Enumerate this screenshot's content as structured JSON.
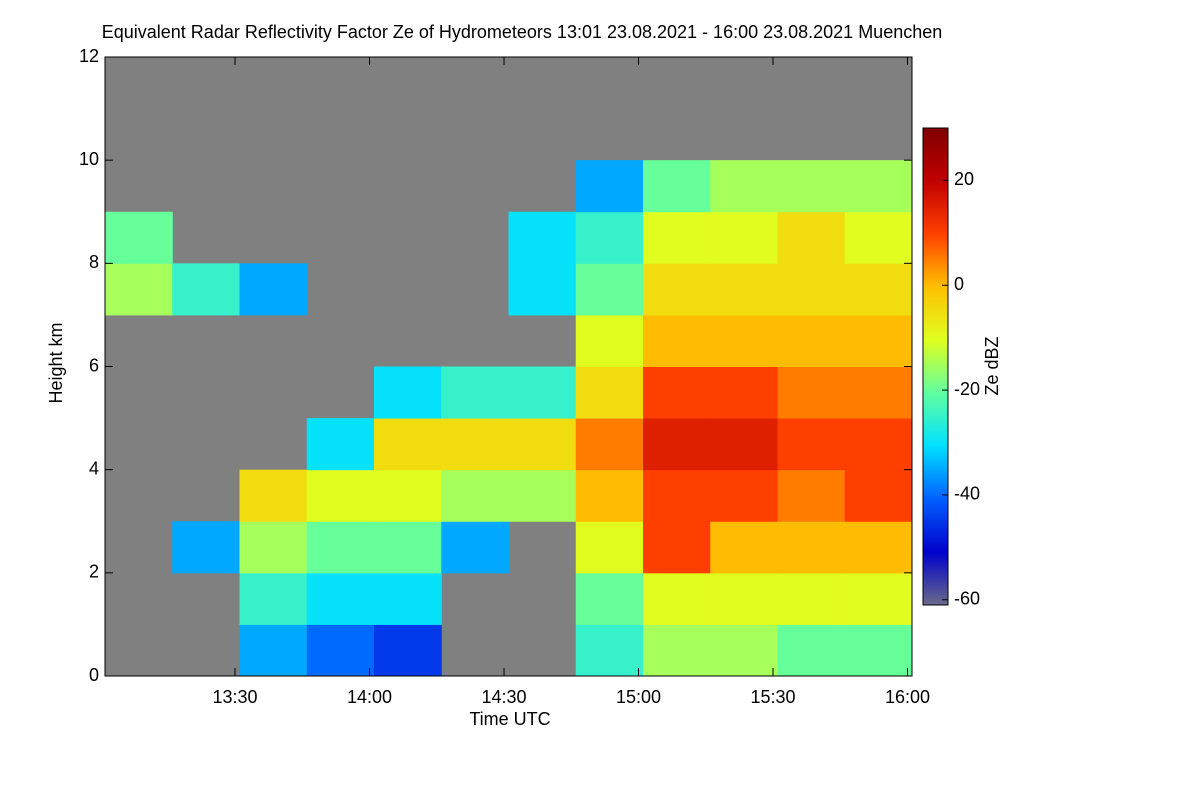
{
  "chart_data": {
    "type": "heatmap",
    "title": "Equivalent Radar Reflectivity Factor Ze of Hydrometeors   13:01 23.08.2021 - 16:00 23.08.2021 Muenchen",
    "x_label": "Time UTC",
    "y_label": "Height km",
    "colorbar_label": "Ze dBZ",
    "x": [
      "13:01",
      "13:16",
      "13:31",
      "13:46",
      "14:01",
      "14:16",
      "14:31",
      "14:46",
      "15:01",
      "15:16",
      "15:31",
      "15:46"
    ],
    "y": [
      0,
      1,
      2,
      3,
      4,
      5,
      6,
      7,
      8,
      9,
      10,
      11
    ],
    "z": [
      [
        null,
        null,
        -35,
        -40,
        -45,
        null,
        null,
        -25,
        -15,
        -15,
        -20,
        -20
      ],
      [
        null,
        null,
        -25,
        -30,
        -30,
        null,
        null,
        -20,
        -10,
        -10,
        -10,
        -10
      ],
      [
        null,
        -35,
        -15,
        -20,
        -20,
        -35,
        null,
        -10,
        10,
        0,
        0,
        0
      ],
      [
        null,
        null,
        -5,
        -10,
        -10,
        -15,
        -15,
        0,
        10,
        10,
        5,
        10
      ],
      [
        null,
        null,
        null,
        -30,
        -5,
        -5,
        -5,
        5,
        15,
        15,
        10,
        10
      ],
      [
        null,
        null,
        null,
        null,
        -30,
        -25,
        -25,
        -5,
        10,
        10,
        5,
        5
      ],
      [
        null,
        null,
        null,
        null,
        null,
        null,
        null,
        -10,
        0,
        0,
        0,
        0
      ],
      [
        -15,
        -25,
        -35,
        null,
        null,
        null,
        -30,
        -20,
        -5,
        -5,
        -5,
        -5
      ],
      [
        -20,
        null,
        null,
        null,
        null,
        null,
        -30,
        -25,
        -10,
        -10,
        -5,
        -10
      ],
      [
        null,
        null,
        null,
        null,
        null,
        null,
        null,
        -35,
        -20,
        -15,
        -15,
        -15
      ],
      [
        null,
        null,
        null,
        null,
        null,
        null,
        null,
        null,
        null,
        null,
        null,
        null
      ],
      [
        null,
        null,
        null,
        null,
        null,
        null,
        null,
        null,
        null,
        null,
        null,
        null
      ]
    ],
    "xlim": [
      "13:01",
      "16:01"
    ],
    "xticks": [
      "13:30",
      "14:00",
      "14:30",
      "15:00",
      "15:30",
      "16:00"
    ],
    "ylim": [
      0,
      12
    ],
    "yticks": [
      0,
      2,
      4,
      6,
      8,
      10,
      12
    ],
    "zlim": [
      -61,
      30
    ],
    "zticks": [
      -60,
      -40,
      -20,
      0,
      20
    ],
    "colormap": [
      "#6a6a8a",
      "#0000cc",
      "#0060ff",
      "#00e0ff",
      "#60ffa0",
      "#e0ff20",
      "#ffc000",
      "#ff4000",
      "#c00000",
      "#800000"
    ],
    "no_data_color": "#808080"
  }
}
